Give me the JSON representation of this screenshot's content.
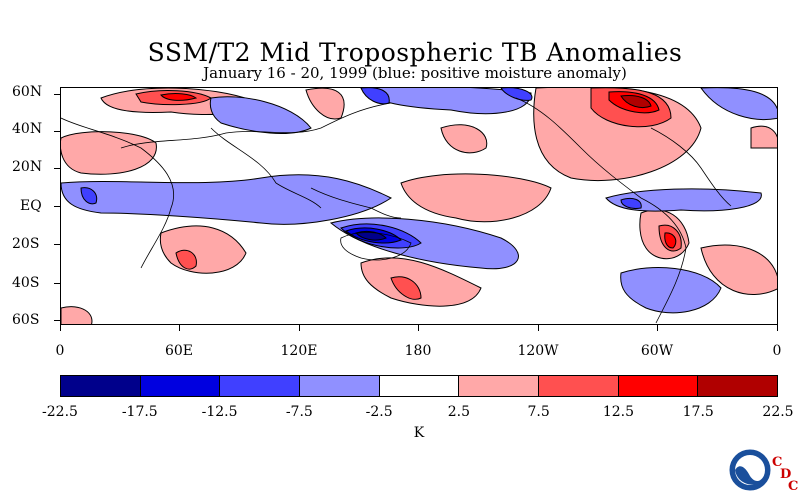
{
  "title": "SSM/T2 Mid Tropospheric TB Anomalies",
  "subtitle": "January 16 - 20, 1999 (blue: positive moisture anomaly)",
  "map": {
    "lat_labels": [
      "60N",
      "40N",
      "20N",
      "EQ",
      "20S",
      "40S",
      "60S"
    ],
    "lon_labels": [
      "0",
      "60E",
      "120E",
      "180",
      "120W",
      "60W",
      "0"
    ]
  },
  "colorbar": {
    "unit": "K",
    "levels": [
      "-22.5",
      "-17.5",
      "-12.5",
      "-7.5",
      "-2.5",
      "2.5",
      "7.5",
      "12.5",
      "17.5",
      "22.5"
    ],
    "colors": [
      "#00008b",
      "#0000e0",
      "#4040ff",
      "#9090ff",
      "#ffffff",
      "#ffa8a8",
      "#ff5050",
      "#ff0000",
      "#b00000"
    ]
  },
  "branding": {
    "logo": "noaa-logo",
    "cdc_letters": [
      "C",
      "D",
      "C"
    ]
  }
}
